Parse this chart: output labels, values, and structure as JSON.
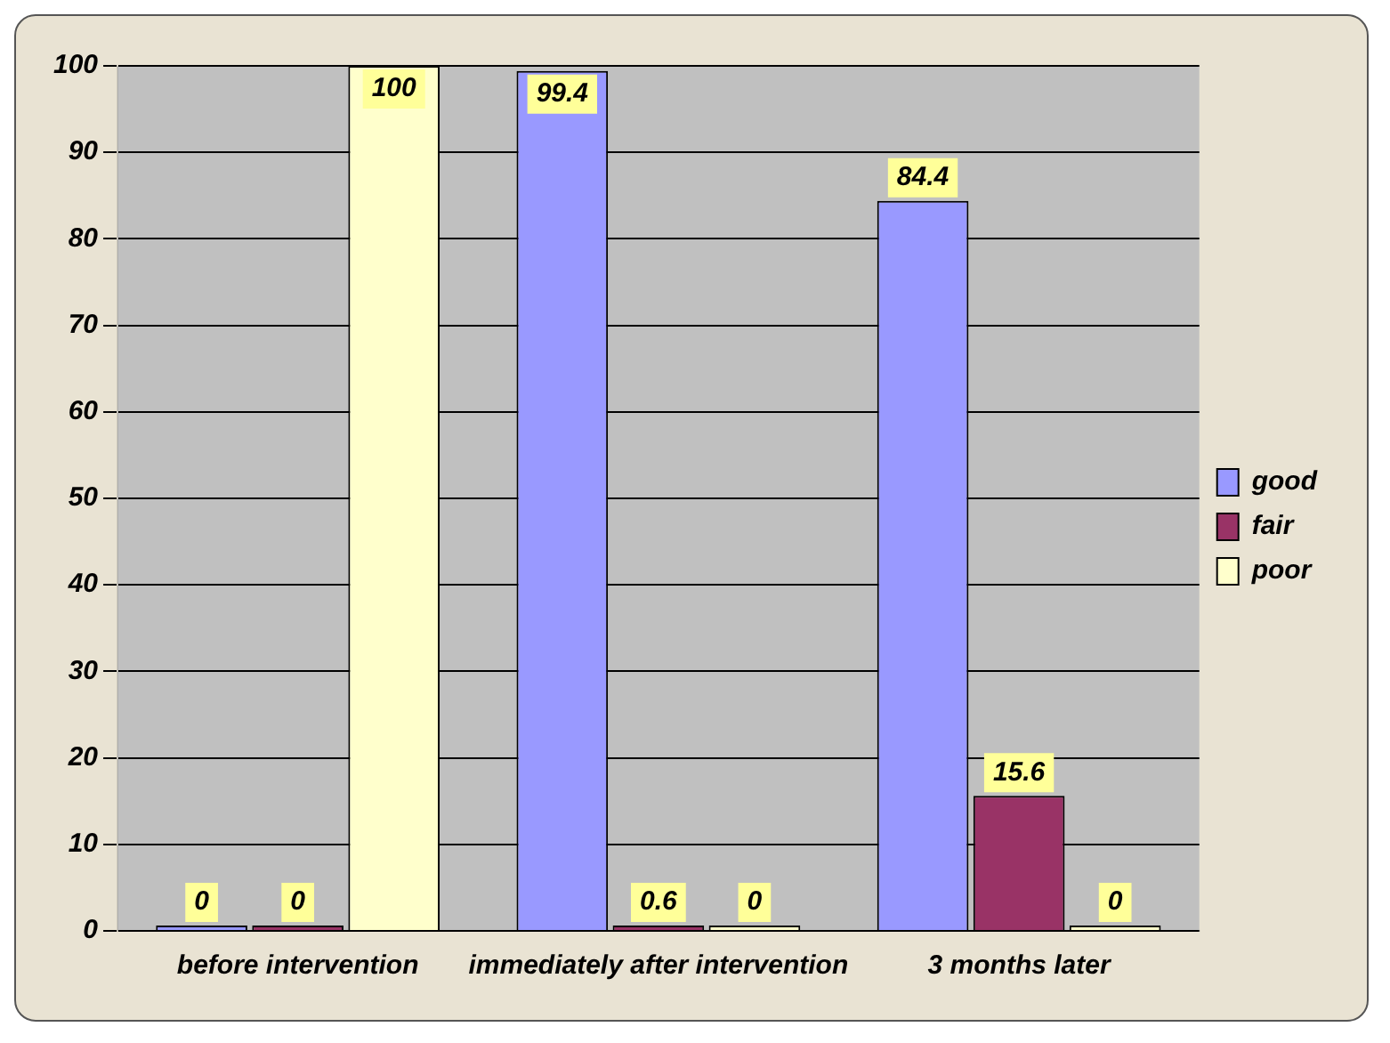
{
  "chart_data": {
    "type": "bar",
    "categories": [
      "before intervention",
      "immediately after intervention",
      "3 months later"
    ],
    "series": [
      {
        "name": "good",
        "color": "#9999ff",
        "values": [
          0,
          99.4,
          84.4
        ]
      },
      {
        "name": "fair",
        "color": "#993366",
        "values": [
          0,
          0.6,
          15.6
        ]
      },
      {
        "name": "poor",
        "color": "#ffffcc",
        "values": [
          100,
          0,
          0
        ]
      }
    ],
    "ylim": [
      0,
      100
    ],
    "yticks": [
      0,
      10,
      20,
      30,
      40,
      50,
      60,
      70,
      80,
      90,
      100
    ],
    "grid": "y",
    "legend": "right",
    "data_labels": true
  }
}
